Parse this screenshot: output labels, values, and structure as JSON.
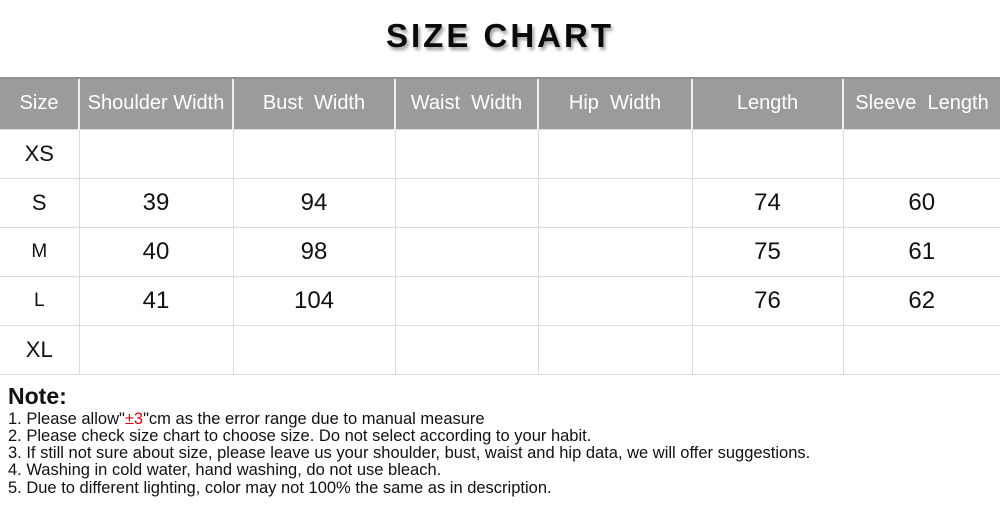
{
  "title": "SIZE CHART",
  "table": {
    "headers": [
      "Size",
      "Shoulder Width",
      "Bust  Width",
      "Waist  Width",
      "Hip  Width",
      "Length",
      "Sleeve  Length"
    ],
    "rows": [
      {
        "size": "XS",
        "values": [
          "",
          "",
          "",
          "",
          "",
          ""
        ]
      },
      {
        "size": "S",
        "values": [
          "39",
          "94",
          "",
          "",
          "74",
          "60"
        ]
      },
      {
        "size": "M",
        "values": [
          "40",
          "98",
          "",
          "",
          "75",
          "61"
        ]
      },
      {
        "size": "L",
        "values": [
          "41",
          "104",
          "",
          "",
          "76",
          "62"
        ]
      },
      {
        "size": "XL",
        "values": [
          "",
          "",
          "",
          "",
          "",
          ""
        ]
      }
    ]
  },
  "note": {
    "heading": "Note:",
    "line1": {
      "prefix": "1. Please allow\"",
      "highlight": "±3",
      "suffix": "\"cm as the error range due to manual measure"
    },
    "other_lines": [
      "2. Please check size chart to choose size. Do not select according to your habit.",
      "3. If still not sure about size, please leave us your shoulder, bust, waist and hip data, we will offer suggestions.",
      "4. Washing in cold water, hand washing, do not use bleach.",
      "5. Due to different lighting, color may not 100% the same as in description."
    ]
  },
  "colors": {
    "header_bg": "#9b9b9b",
    "header_text": "#ffffff",
    "border": "#dcdcdc",
    "red": "#e60012"
  },
  "chart_data": {
    "type": "table",
    "title": "SIZE CHART",
    "columns": [
      "Size",
      "Shoulder Width",
      "Bust Width",
      "Waist Width",
      "Hip Width",
      "Length",
      "Sleeve Length"
    ],
    "rows": [
      [
        "XS",
        null,
        null,
        null,
        null,
        null,
        null
      ],
      [
        "S",
        39,
        94,
        null,
        null,
        74,
        60
      ],
      [
        "M",
        40,
        98,
        null,
        null,
        75,
        61
      ],
      [
        "L",
        41,
        104,
        null,
        null,
        76,
        62
      ],
      [
        "XL",
        null,
        null,
        null,
        null,
        null,
        null
      ]
    ],
    "units": "cm",
    "error_range": "±3"
  }
}
